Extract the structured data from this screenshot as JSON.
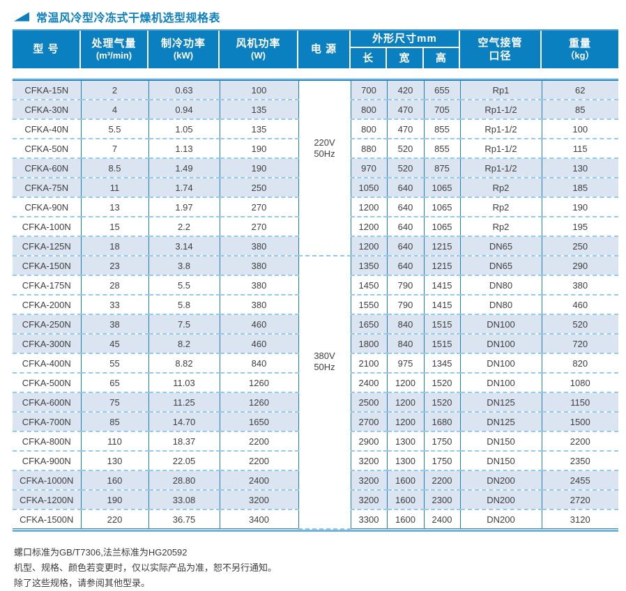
{
  "title": "常温风冷型冷冻式干燥机选型规格表",
  "colors": {
    "header_bg": "#0a80c0",
    "title_blue": "#0d7fbe",
    "row_shade": "#dbe4f1",
    "grid_line": "#1e7cb8",
    "dash_line": "#93c9ea",
    "border_light": "#a8d3ec",
    "border_dark": "#2e86c1",
    "text": "#3e3e3e"
  },
  "header": {
    "model": "型 号",
    "airflow_title": "处理气量",
    "airflow_unit": "(m³/min)",
    "cooling_title": "制冷功率",
    "cooling_unit": "(kW)",
    "fan_title": "风机功率",
    "fan_unit": "(W)",
    "power": "电 源",
    "dims_title": "外形尺寸mm",
    "dim_l": "长",
    "dim_w": "宽",
    "dim_h": "高",
    "pipe_line1": "空气接管",
    "pipe_line2": "口径",
    "weight_title": "重量",
    "weight_unit": "（kg）"
  },
  "table": {
    "power_groups": [
      {
        "lines": [
          "220V",
          "50Hz"
        ],
        "rows": 9
      },
      {
        "lines": [
          "380V",
          "50Hz"
        ],
        "rows": 14
      }
    ],
    "rows": [
      {
        "model": "CFKA-15N",
        "airflow": "2",
        "cooling": "0.63",
        "fan": "100",
        "length": "700",
        "width": "420",
        "height": "655",
        "pipe": "Rp1",
        "weight": "62"
      },
      {
        "model": "CFKA-30N",
        "airflow": "4",
        "cooling": "0.94",
        "fan": "135",
        "length": "800",
        "width": "470",
        "height": "705",
        "pipe": "Rp1-1/2",
        "weight": "85"
      },
      {
        "model": "CFKA-40N",
        "airflow": "5.5",
        "cooling": "1.05",
        "fan": "135",
        "length": "800",
        "width": "470",
        "height": "855",
        "pipe": "Rp1-1/2",
        "weight": "100"
      },
      {
        "model": "CFKA-50N",
        "airflow": "7",
        "cooling": "1.13",
        "fan": "190",
        "length": "880",
        "width": "520",
        "height": "855",
        "pipe": "Rp1-1/2",
        "weight": "115"
      },
      {
        "model": "CFKA-60N",
        "airflow": "8.5",
        "cooling": "1.49",
        "fan": "190",
        "length": "970",
        "width": "520",
        "height": "875",
        "pipe": "Rp1-1/2",
        "weight": "130"
      },
      {
        "model": "CFKA-75N",
        "airflow": "11",
        "cooling": "1.74",
        "fan": "250",
        "length": "1050",
        "width": "640",
        "height": "1065",
        "pipe": "Rp2",
        "weight": "185"
      },
      {
        "model": "CFKA-90N",
        "airflow": "13",
        "cooling": "1.97",
        "fan": "270",
        "length": "1200",
        "width": "640",
        "height": "1065",
        "pipe": "Rp2",
        "weight": "190"
      },
      {
        "model": "CFKA-100N",
        "airflow": "15",
        "cooling": "2.2",
        "fan": "270",
        "length": "1200",
        "width": "640",
        "height": "1065",
        "pipe": "Rp2",
        "weight": "195"
      },
      {
        "model": "CFKA-125N",
        "airflow": "18",
        "cooling": "3.14",
        "fan": "380",
        "length": "1200",
        "width": "640",
        "height": "1215",
        "pipe": "DN65",
        "weight": "250"
      },
      {
        "model": "CFKA-150N",
        "airflow": "23",
        "cooling": "3.8",
        "fan": "380",
        "length": "1350",
        "width": "640",
        "height": "1215",
        "pipe": "DN65",
        "weight": "290"
      },
      {
        "model": "CFKA-175N",
        "airflow": "28",
        "cooling": "5.5",
        "fan": "380",
        "length": "1450",
        "width": "790",
        "height": "1415",
        "pipe": "DN80",
        "weight": "380"
      },
      {
        "model": "CFKA-200N",
        "airflow": "33",
        "cooling": "5.8",
        "fan": "380",
        "length": "1550",
        "width": "790",
        "height": "1415",
        "pipe": "DN80",
        "weight": "460"
      },
      {
        "model": "CFKA-250N",
        "airflow": "38",
        "cooling": "7.5",
        "fan": "460",
        "length": "1650",
        "width": "840",
        "height": "1515",
        "pipe": "DN100",
        "weight": "520"
      },
      {
        "model": "CFKA-300N",
        "airflow": "45",
        "cooling": "8.2",
        "fan": "460",
        "length": "1800",
        "width": "840",
        "height": "1515",
        "pipe": "DN100",
        "weight": "720"
      },
      {
        "model": "CFKA-400N",
        "airflow": "55",
        "cooling": "8.82",
        "fan": "840",
        "length": "2100",
        "width": "975",
        "height": "1345",
        "pipe": "DN100",
        "weight": "820"
      },
      {
        "model": "CFKA-500N",
        "airflow": "65",
        "cooling": "11.03",
        "fan": "1260",
        "length": "2400",
        "width": "1200",
        "height": "1520",
        "pipe": "DN100",
        "weight": "1080"
      },
      {
        "model": "CFKA-600N",
        "airflow": "75",
        "cooling": "11.25",
        "fan": "1260",
        "length": "2500",
        "width": "1200",
        "height": "1520",
        "pipe": "DN125",
        "weight": "1150"
      },
      {
        "model": "CFKA-700N",
        "airflow": "85",
        "cooling": "14.70",
        "fan": "1650",
        "length": "2700",
        "width": "1200",
        "height": "1680",
        "pipe": "DN125",
        "weight": "1500"
      },
      {
        "model": "CFKA-800N",
        "airflow": "110",
        "cooling": "18.37",
        "fan": "2200",
        "length": "2900",
        "width": "1300",
        "height": "1750",
        "pipe": "DN150",
        "weight": "2200"
      },
      {
        "model": "CFKA-900N",
        "airflow": "130",
        "cooling": "22.05",
        "fan": "2200",
        "length": "3200",
        "width": "1300",
        "height": "1750",
        "pipe": "DN150",
        "weight": "2350"
      },
      {
        "model": "CFKA-1000N",
        "airflow": "160",
        "cooling": "28.80",
        "fan": "2400",
        "length": "3200",
        "width": "1600",
        "height": "2200",
        "pipe": "DN200",
        "weight": "2455"
      },
      {
        "model": "CFKA-1200N",
        "airflow": "190",
        "cooling": "33.08",
        "fan": "3200",
        "length": "3200",
        "width": "1600",
        "height": "2300",
        "pipe": "DN200",
        "weight": "2720"
      },
      {
        "model": "CFKA-1500N",
        "airflow": "220",
        "cooling": "36.75",
        "fan": "3400",
        "length": "3300",
        "width": "1600",
        "height": "2400",
        "pipe": "DN200",
        "weight": "3120"
      }
    ]
  },
  "notes": [
    "螺口标准为GB/T7306,法兰标准为HG20592",
    "机型、规格、颜色若变更时，仅以实际产品为准，恕不另行通知。",
    "除了这些规格，请参阅其他型录。"
  ]
}
